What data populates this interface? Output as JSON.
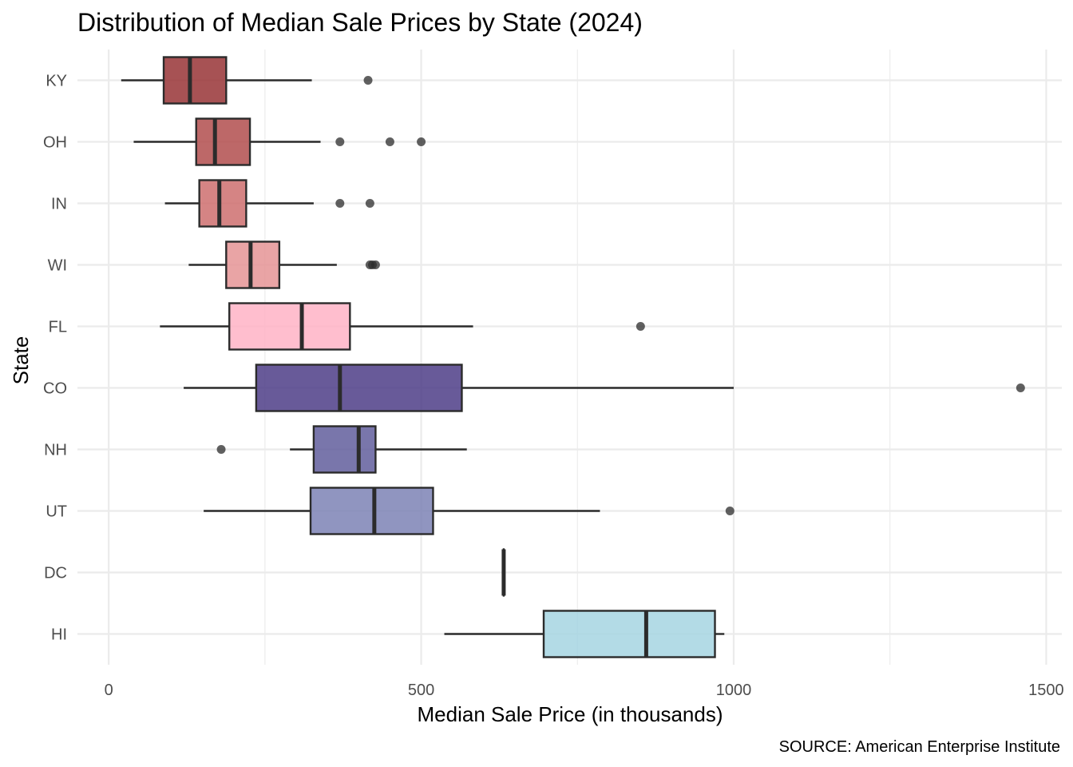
{
  "chart_data": {
    "type": "boxplot",
    "orientation": "horizontal",
    "title": "Distribution of Median Sale Prices by State (2024)",
    "xlabel": "Median Sale Price (in thousands)",
    "ylabel": "State",
    "caption": "SOURCE: American Enterprise Institute",
    "xlim": [
      -50,
      1525
    ],
    "x_ticks": [
      0,
      500,
      1000,
      1500
    ],
    "x_tick_labels": [
      "0",
      "500",
      "1000",
      "1500"
    ],
    "grid": true,
    "legend": "none",
    "categories": [
      "KY",
      "OH",
      "IN",
      "WI",
      "FL",
      "CO",
      "NH",
      "UT",
      "DC",
      "HI"
    ],
    "boxes": [
      {
        "state": "KY",
        "whisker_low": 20,
        "q1": 88,
        "median": 130,
        "q3": 188,
        "whisker_high": 325,
        "outliers": [
          415
        ],
        "color": "#983436"
      },
      {
        "state": "OH",
        "whisker_low": 40,
        "q1": 140,
        "median": 170,
        "q3": 226,
        "whisker_high": 339,
        "outliers": [
          370,
          450,
          500
        ],
        "color": "#b24d4e"
      },
      {
        "state": "IN",
        "whisker_low": 90,
        "q1": 145,
        "median": 177,
        "q3": 220,
        "whisker_high": 328,
        "outliers": [
          370,
          418
        ],
        "color": "#ce6e6e"
      },
      {
        "state": "WI",
        "whisker_low": 128,
        "q1": 188,
        "median": 227,
        "q3": 273,
        "whisker_high": 365,
        "outliers": [
          418,
          422,
          427
        ],
        "color": "#e59495"
      },
      {
        "state": "FL",
        "whisker_low": 82,
        "q1": 193,
        "median": 309,
        "q3": 386,
        "whisker_high": 583,
        "outliers": [
          851
        ],
        "color": "#ffb3c6"
      },
      {
        "state": "CO",
        "whisker_low": 120,
        "q1": 236,
        "median": 370,
        "q3": 565,
        "whisker_high": 1000,
        "outliers": [
          1459
        ],
        "color": "#4e3d87"
      },
      {
        "state": "NH",
        "whisker_low": 290,
        "q1": 328,
        "median": 400,
        "q3": 427,
        "whisker_high": 573,
        "outliers": [
          180
        ],
        "color": "#625e9c"
      },
      {
        "state": "UT",
        "whisker_low": 152,
        "q1": 323,
        "median": 425,
        "q3": 519,
        "whisker_high": 786,
        "outliers": [
          994
        ],
        "color": "#7c82b5"
      },
      {
        "state": "DC",
        "whisker_low": 632,
        "q1": 632,
        "median": 632,
        "q3": 632,
        "whisker_high": 632,
        "outliers": [],
        "color": "#8a9bc7"
      },
      {
        "state": "HI",
        "whisker_low": 537,
        "q1": 696,
        "median": 860,
        "q3": 970,
        "whisker_high": 985,
        "outliers": [],
        "color": "#a6d5e2"
      }
    ]
  }
}
